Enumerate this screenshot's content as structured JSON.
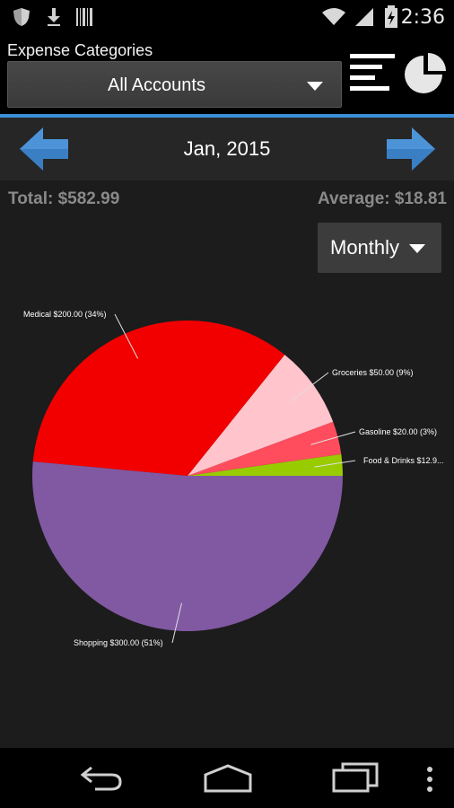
{
  "status_bar": {
    "time": "2:36",
    "icons": [
      "shield-icon",
      "download-icon",
      "barcode-icon",
      "wifi-icon",
      "signal-icon",
      "battery-icon"
    ]
  },
  "action_bar": {
    "title": "Expense Categories",
    "account_selector": {
      "selected": "All Accounts"
    },
    "actions": [
      "list-view-icon",
      "pie-chart-icon"
    ]
  },
  "period_nav": {
    "label": "Jan, 2015",
    "prev": "arrow-left-icon",
    "next": "arrow-right-icon"
  },
  "summary": {
    "total": "Total: $582.99",
    "average": "Average: $18.81"
  },
  "interval_selector": {
    "selected": "Monthly"
  },
  "chart_data": {
    "type": "pie",
    "slices": [
      {
        "label": "Food & Drinks $12.9...",
        "value": 12.99,
        "color": "#99cc00"
      },
      {
        "label": "Gasoline $20.00 (3%)",
        "value": 20.0,
        "color": "#ff4d5e"
      },
      {
        "label": "Groceries $50.00 (9%)",
        "value": 50.0,
        "color": "#ffc4cc"
      },
      {
        "label": "Medical $200.00 (34%)",
        "value": 200.0,
        "color": "#f20000"
      },
      {
        "label": "Shopping $300.00 (51%)",
        "value": 300.0,
        "color": "#8159a3"
      }
    ]
  },
  "system_nav": [
    "back-icon",
    "home-icon",
    "recents-icon",
    "overflow-menu-icon"
  ]
}
